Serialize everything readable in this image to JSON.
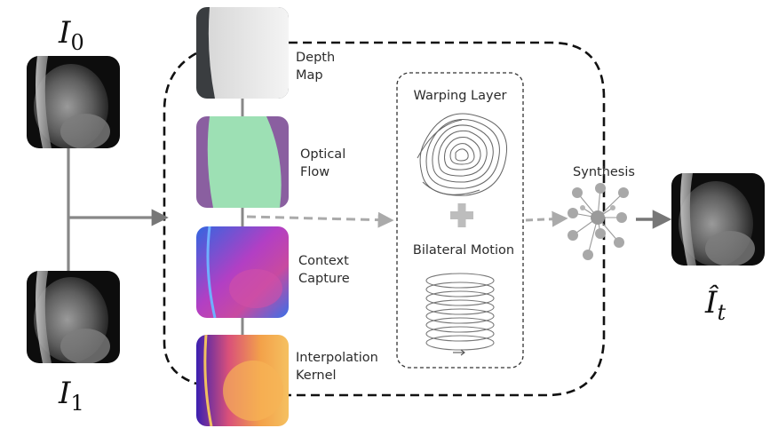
{
  "inputs": {
    "frame0": {
      "symbol": "I",
      "subscript": "0"
    },
    "frame1": {
      "symbol": "I",
      "subscript": "1"
    }
  },
  "output": {
    "symbol": "Î",
    "subscript": "t"
  },
  "modules": [
    {
      "line1": "Depth",
      "line2": "Map"
    },
    {
      "line1": "Optical",
      "line2": "Flow"
    },
    {
      "line1": "Context",
      "line2": "Capture"
    },
    {
      "line1": "Interpolation",
      "line2": "Kernel"
    }
  ],
  "warping": {
    "title": "Warping Layer",
    "subtitle": "Bilateral Motion"
  },
  "synthesis": {
    "label": "Synthesis"
  },
  "colors": {
    "depth_bg": "#3a3a3a",
    "optical_flow_left": "#8a5fa0",
    "optical_flow_right": "#9de0b4",
    "context_blue": "#3c6fe0",
    "context_magenta": "#c23fb8",
    "kernel_purple": "#3a1fa8",
    "kernel_orange": "#f0a040",
    "arrow_gray": "#777777",
    "dashed_gray": "#aaaaaa"
  }
}
